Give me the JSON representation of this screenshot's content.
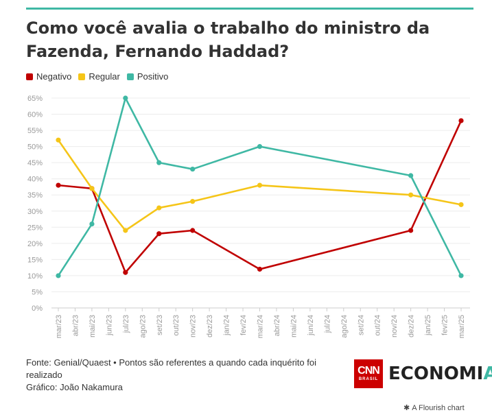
{
  "title": "Como você avalia o trabalho do ministro da Fazenda, Fernando Haddad?",
  "legend": [
    {
      "label": "Negativo",
      "color": "#c00000"
    },
    {
      "label": "Regular",
      "color": "#f5c518"
    },
    {
      "label": "Positivo",
      "color": "#3fb8a4"
    }
  ],
  "footer": {
    "source": "Fonte: Genial/Quaest • Pontos são referentes a quando cada inquérito foi realizado",
    "credit": "Gráfico: João Nakamura"
  },
  "logo": {
    "cnn": "CNN",
    "cnn_sub": "BRASIL",
    "brand_main": "ECONOMI",
    "brand_accent": "A"
  },
  "flourish": {
    "icon": "asterisk-icon",
    "label": "A Flourish chart"
  },
  "chart_data": {
    "type": "line",
    "categories": [
      "mar/23",
      "abr/23",
      "mai/23",
      "jun/23",
      "jul/23",
      "ago/23",
      "set/23",
      "out/23",
      "nov/23",
      "dez/23",
      "jan/24",
      "fev/24",
      "mar/24",
      "abr/24",
      "mai/24",
      "jun/24",
      "jul/24",
      "ago/24",
      "set/24",
      "out/24",
      "nov/24",
      "dez/24",
      "jan/25",
      "fev/25",
      "mar/25"
    ],
    "yticks": [
      "0%",
      "5%",
      "10%",
      "15%",
      "20%",
      "25%",
      "30%",
      "35%",
      "40%",
      "45%",
      "50%",
      "55%",
      "60%",
      "65%"
    ],
    "ylim": [
      0,
      65
    ],
    "series": [
      {
        "name": "Negativo",
        "color": "#c00000",
        "points": [
          [
            "mar/23",
            38
          ],
          [
            "mai/23",
            37
          ],
          [
            "jul/23",
            11
          ],
          [
            "set/23",
            23
          ],
          [
            "nov/23",
            24
          ],
          [
            "mar/24",
            12
          ],
          [
            "dez/24",
            24
          ],
          [
            "mar/25",
            58
          ]
        ]
      },
      {
        "name": "Regular",
        "color": "#f5c518",
        "points": [
          [
            "mar/23",
            52
          ],
          [
            "mai/23",
            37
          ],
          [
            "jul/23",
            24
          ],
          [
            "set/23",
            31
          ],
          [
            "nov/23",
            33
          ],
          [
            "mar/24",
            38
          ],
          [
            "dez/24",
            35
          ],
          [
            "mar/25",
            32
          ]
        ]
      },
      {
        "name": "Positivo",
        "color": "#3fb8a4",
        "points": [
          [
            "mar/23",
            10
          ],
          [
            "mai/23",
            26
          ],
          [
            "jul/23",
            65
          ],
          [
            "set/23",
            45
          ],
          [
            "nov/23",
            43
          ],
          [
            "mar/24",
            50
          ],
          [
            "dez/24",
            41
          ],
          [
            "mar/25",
            10
          ]
        ]
      }
    ]
  }
}
